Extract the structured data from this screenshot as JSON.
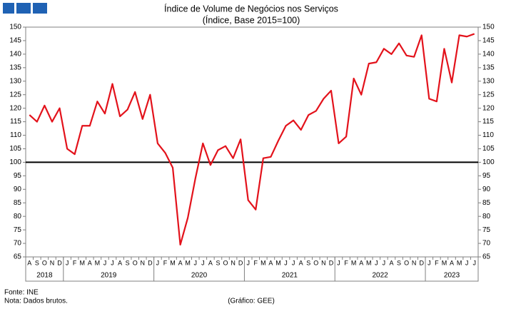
{
  "chart_data": {
    "type": "line",
    "title": "Índice de Volume de Negócios nos Serviços",
    "subtitle": "(Índice, Base 2015=100)",
    "categories": [
      "A",
      "S",
      "O",
      "N",
      "D",
      "J",
      "F",
      "M",
      "A",
      "M",
      "J",
      "J",
      "A",
      "S",
      "O",
      "N",
      "D",
      "J",
      "F",
      "M",
      "A",
      "M",
      "J",
      "J",
      "A",
      "S",
      "O",
      "N",
      "D",
      "J",
      "F",
      "M",
      "A",
      "M",
      "J",
      "J",
      "A",
      "S",
      "O",
      "N",
      "D",
      "J",
      "F",
      "M",
      "A",
      "M",
      "J",
      "J",
      "A",
      "S",
      "O",
      "N",
      "D",
      "J",
      "F",
      "M",
      "A",
      "M",
      "J",
      "J"
    ],
    "x_groups": [
      {
        "label": "2018",
        "size": 5
      },
      {
        "label": "2019",
        "size": 12
      },
      {
        "label": "2020",
        "size": 12
      },
      {
        "label": "2021",
        "size": 12
      },
      {
        "label": "2022",
        "size": 12
      },
      {
        "label": "2023",
        "size": 7
      }
    ],
    "series": [
      {
        "color": "#e3121b",
        "values": [
          117.5,
          115,
          121,
          115,
          120,
          105,
          103,
          113.5,
          113.5,
          122.5,
          118,
          129,
          117,
          119.5,
          126,
          116,
          125,
          107,
          103.5,
          98,
          69.5,
          79.5,
          94,
          107,
          99,
          104.5,
          106,
          101.5,
          108.5,
          86,
          82.5,
          101.5,
          102,
          108,
          113.5,
          115.5,
          112,
          117.5,
          119,
          123.5,
          126.5,
          107,
          109.5,
          131,
          125,
          136.5,
          137,
          142,
          140,
          144,
          139.5,
          139,
          147,
          123.5,
          122.5,
          142,
          129.5,
          147,
          146.5,
          147.5
        ]
      }
    ],
    "reference_line": 100,
    "ylim": [
      65,
      150
    ],
    "yticks": [
      65,
      70,
      75,
      80,
      85,
      90,
      95,
      100,
      105,
      110,
      115,
      120,
      125,
      130,
      135,
      140,
      145,
      150
    ],
    "y2lim": [
      65,
      150
    ],
    "y2ticks": [
      65,
      70,
      75,
      80,
      85,
      90,
      95,
      100,
      105,
      110,
      115,
      120,
      125,
      130,
      135,
      140,
      145,
      150
    ],
    "source": "Fonte: INE",
    "note": "Nota: Dados brutos.",
    "credit": "(Gráfico: GEE)"
  }
}
